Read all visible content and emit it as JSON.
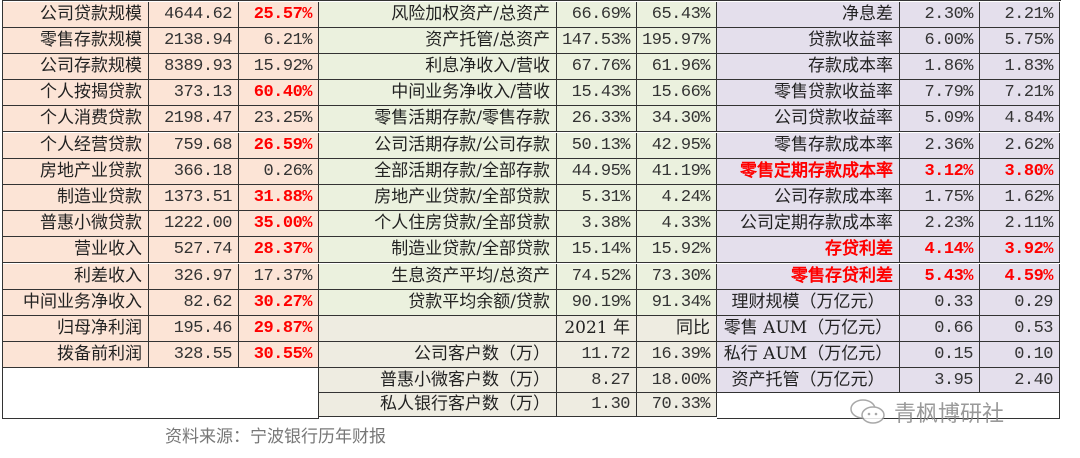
{
  "colors": {
    "left": "#fce4d6",
    "middle": "#ebf1de",
    "middle_lower": "#eeece1",
    "right": "#e4dfec",
    "highlight": "#ff0000"
  },
  "left": {
    "rows": [
      {
        "label": "公司贷款规模",
        "value": "4644.62",
        "yoy": "25.57%",
        "hl_yoy": true
      },
      {
        "label": "零售存款规模",
        "value": "2138.94",
        "yoy": "6.21%"
      },
      {
        "label": "公司存款规模",
        "value": "8389.93",
        "yoy": "15.92%"
      },
      {
        "label": "个人按揭贷款",
        "value": "373.13",
        "yoy": "60.40%",
        "hl_yoy": true
      },
      {
        "label": "个人消费贷款",
        "value": "2198.47",
        "yoy": "23.25%"
      },
      {
        "label": "个人经营贷款",
        "value": "759.68",
        "yoy": "26.59%",
        "hl_yoy": true
      },
      {
        "label": "房地产业贷款",
        "value": "366.18",
        "yoy": "0.26%"
      },
      {
        "label": "制造业贷款",
        "value": "1373.51",
        "yoy": "31.88%",
        "hl_yoy": true
      },
      {
        "label": "普惠小微贷款",
        "value": "1222.00",
        "yoy": "35.00%",
        "hl_yoy": true
      },
      {
        "label": "营业收入",
        "value": "527.74",
        "yoy": "28.37%",
        "hl_yoy": true
      },
      {
        "label": "利差收入",
        "value": "326.97",
        "yoy": "17.37%"
      },
      {
        "label": "中间业务净收入",
        "value": "82.62",
        "yoy": "30.27%",
        "hl_yoy": true
      },
      {
        "label": "归母净利润",
        "value": "195.46",
        "yoy": "29.87%",
        "hl_yoy": true
      },
      {
        "label": "拨备前利润",
        "value": "328.55",
        "yoy": "30.55%",
        "hl_yoy": true
      }
    ]
  },
  "middle": {
    "rows": [
      {
        "label": "风险加权资产/总资产",
        "a": "66.69%",
        "b": "65.43%"
      },
      {
        "label": "资产托管/总资产",
        "a": "147.53%",
        "b": "195.97%"
      },
      {
        "label": "利息净收入/营收",
        "a": "67.76%",
        "b": "61.96%"
      },
      {
        "label": "中间业务净收入/营收",
        "a": "15.43%",
        "b": "15.66%"
      },
      {
        "label": "零售活期存款/零售存款",
        "a": "26.33%",
        "b": "34.30%"
      },
      {
        "label": "公司活期存款/公司存款",
        "a": "50.13%",
        "b": "42.95%"
      },
      {
        "label": "全部活期存款/全部存款",
        "a": "44.95%",
        "b": "41.19%"
      },
      {
        "label": "房地产业贷款/全部贷款",
        "a": "5.31%",
        "b": "4.24%"
      },
      {
        "label": "个人住房贷款/全部贷款",
        "a": "3.38%",
        "b": "4.33%"
      },
      {
        "label": "制造业贷款/全部贷款",
        "a": "15.14%",
        "b": "15.92%"
      },
      {
        "label": "生息资产平均/总资产",
        "a": "74.52%",
        "b": "73.30%"
      },
      {
        "label": "贷款平均余额/贷款",
        "a": "90.19%",
        "b": "91.34%"
      },
      {
        "label": "",
        "a": "2021 年",
        "b": "同比",
        "header": true
      },
      {
        "label": "公司客户数（万）",
        "a": "11.72",
        "b": "16.39%"
      },
      {
        "label": "普惠小微客户数（万）",
        "a": "8.27",
        "b": "18.00%"
      },
      {
        "label": "私人银行客户数（万）",
        "a": "1.30",
        "b": "70.33%"
      }
    ]
  },
  "right": {
    "rows": [
      {
        "label": "净息差",
        "a": "2.30%",
        "b": "2.21%"
      },
      {
        "label": "贷款收益率",
        "a": "6.00%",
        "b": "5.75%"
      },
      {
        "label": "存款成本率",
        "a": "1.86%",
        "b": "1.83%"
      },
      {
        "label": "零售贷款收益率",
        "a": "7.79%",
        "b": "7.21%"
      },
      {
        "label": "公司贷款收益率",
        "a": "5.09%",
        "b": "4.84%"
      },
      {
        "label": "零售存款成本率",
        "a": "2.36%",
        "b": "2.62%"
      },
      {
        "label": "零售定期存款成本率",
        "a": "3.12%",
        "b": "3.80%",
        "hl": true
      },
      {
        "label": "公司存款成本率",
        "a": "1.75%",
        "b": "1.62%"
      },
      {
        "label": "公司定期存款成本率",
        "a": "2.23%",
        "b": "2.11%"
      },
      {
        "label": "存贷利差",
        "a": "4.14%",
        "b": "3.92%",
        "hl": true
      },
      {
        "label": "零售存贷利差",
        "a": "5.43%",
        "b": "4.59%",
        "hl": true
      },
      {
        "label": "理财规模（万亿元）",
        "a": "0.33",
        "b": "0.29",
        "center": true
      },
      {
        "label": "零售 AUM（万亿元）",
        "a": "0.66",
        "b": "0.53",
        "center": true
      },
      {
        "label": "私行 AUM（万亿元）",
        "a": "0.15",
        "b": "0.10",
        "center": true
      },
      {
        "label": "资产托管（万亿元）",
        "a": "3.95",
        "b": "2.40",
        "center": true
      }
    ]
  },
  "footer": {
    "source": "资料来源：宁波银行历年财报",
    "watermark": "青枫博研社"
  }
}
